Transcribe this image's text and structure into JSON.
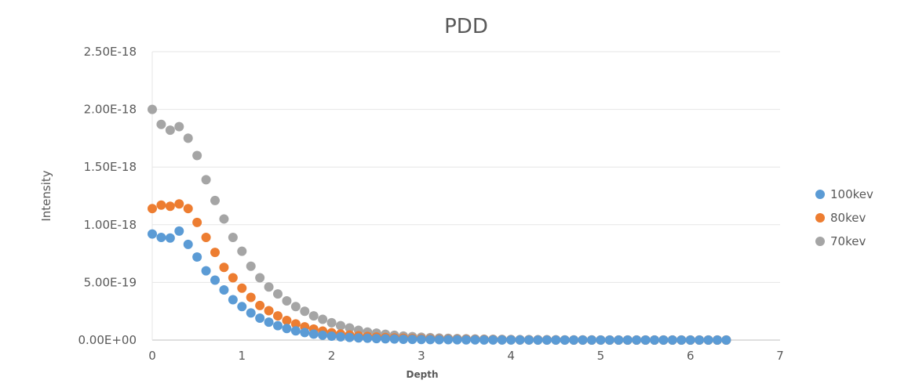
{
  "chart_data": {
    "type": "scatter",
    "title": "PDD",
    "xlabel": "Depth",
    "ylabel": "Intensity",
    "xlim": [
      0,
      7
    ],
    "ylim": [
      0,
      2.5e-18
    ],
    "x_ticks": [
      "0",
      "1",
      "2",
      "3",
      "4",
      "5",
      "6",
      "7"
    ],
    "y_ticks": [
      "0.00E+00",
      "5.00E-19",
      "1.00E-18",
      "1.50E-18",
      "2.00E-18",
      "2.50E-18"
    ],
    "grid": true,
    "legend_position": "right",
    "x": [
      0,
      0.1,
      0.2,
      0.3,
      0.4,
      0.5,
      0.6,
      0.7,
      0.8,
      0.9,
      1.0,
      1.1,
      1.2,
      1.3,
      1.4,
      1.5,
      1.6,
      1.7,
      1.8,
      1.9,
      2.0,
      2.1,
      2.2,
      2.3,
      2.4,
      2.5,
      2.6,
      2.7,
      2.8,
      2.9,
      3.0,
      3.1,
      3.2,
      3.3,
      3.4,
      3.5,
      3.6,
      3.7,
      3.8,
      3.9,
      4.0,
      4.1,
      4.2,
      4.3,
      4.4,
      4.5,
      4.6,
      4.7,
      4.8,
      4.9,
      5.0,
      5.1,
      5.2,
      5.3,
      5.4,
      5.5,
      5.6,
      5.7,
      5.8,
      5.9,
      6.0,
      6.1,
      6.2,
      6.3,
      6.4
    ],
    "series": [
      {
        "name": "100kev",
        "color": "#5B9BD5",
        "values": [
          9.2e-19,
          8.9e-19,
          8.85e-19,
          9.45e-19,
          8.3e-19,
          7.2e-19,
          6e-19,
          5.2e-19,
          4.35e-19,
          3.5e-19,
          2.9e-19,
          2.35e-19,
          1.9e-19,
          1.55e-19,
          1.25e-19,
          1e-19,
          8e-20,
          6.5e-20,
          5.2e-20,
          4.2e-20,
          3.4e-20,
          2.8e-20,
          2.3e-20,
          1.9e-20,
          1.6e-20,
          1.3e-20,
          1.1e-20,
          9e-21,
          7e-21,
          6e-21,
          5e-21,
          4e-21,
          3.5e-21,
          3e-21,
          2.5e-21,
          2e-21,
          1.5e-21,
          1.2e-21,
          1e-21,
          8e-22,
          6e-22,
          5e-22,
          4e-22,
          3e-22,
          2e-22,
          2e-22,
          1e-22,
          1e-22,
          1e-22,
          1e-22,
          1e-22,
          1e-22,
          1e-22,
          1e-22,
          1e-22,
          1e-22,
          1e-22,
          1e-22,
          1e-22,
          1e-22,
          1e-22,
          1e-22,
          1e-22,
          1e-22,
          1e-22
        ]
      },
      {
        "name": "80kev",
        "color": "#ED7D31",
        "values": [
          1.14e-18,
          1.17e-18,
          1.16e-18,
          1.18e-18,
          1.14e-18,
          1.02e-18,
          8.9e-19,
          7.6e-19,
          6.3e-19,
          5.4e-19,
          4.5e-19,
          3.7e-19,
          3e-19,
          2.55e-19,
          2.1e-19,
          1.7e-19,
          1.4e-19,
          1.15e-19,
          9.5e-20,
          7.8e-20,
          6.4e-20,
          5.3e-20,
          4.4e-20,
          3.7e-20,
          3.1e-20,
          2.6e-20,
          2.2e-20,
          1.9e-20,
          1.6e-20,
          1.3e-20,
          1.1e-20,
          9e-21,
          8e-21,
          7e-21,
          6e-21,
          5e-21,
          4e-21,
          3e-21,
          2.5e-21,
          2e-21,
          1.5e-21,
          1.2e-21,
          1e-21,
          8e-22,
          6e-22,
          5e-22,
          4e-22,
          3e-22,
          2e-22,
          2e-22,
          2e-22,
          1e-22,
          1e-22,
          1e-22,
          1e-22,
          1e-22,
          1e-22,
          1e-22,
          1e-22,
          1e-22,
          1e-22,
          1e-22,
          1e-22,
          1e-22,
          1e-22
        ]
      },
      {
        "name": "70kev",
        "color": "#A5A5A5",
        "values": [
          2e-18,
          1.87e-18,
          1.82e-18,
          1.85e-18,
          1.75e-18,
          1.6e-18,
          1.39e-18,
          1.21e-18,
          1.05e-18,
          8.9e-19,
          7.7e-19,
          6.4e-19,
          5.4e-19,
          4.6e-19,
          4e-19,
          3.4e-19,
          2.9e-19,
          2.5e-19,
          2.1e-19,
          1.8e-19,
          1.5e-19,
          1.25e-19,
          1.05e-19,
          8.5e-20,
          7e-20,
          6e-20,
          5e-20,
          4.2e-20,
          3.5e-20,
          3e-20,
          2.5e-20,
          2.1e-20,
          1.8e-20,
          1.5e-20,
          1.3e-20,
          1.1e-20,
          9e-21,
          8e-21,
          7e-21,
          6e-21,
          5e-21,
          4.5e-21,
          4e-21,
          3.5e-21,
          3e-21,
          2.5e-21,
          2e-21,
          2e-21,
          1.5e-21,
          1.5e-21,
          1e-21,
          1e-21,
          1e-21,
          1e-21,
          5e-22,
          5e-22,
          5e-22,
          5e-22,
          5e-22,
          5e-22,
          5e-22,
          5e-22,
          5e-22,
          5e-22,
          5e-22
        ]
      }
    ]
  }
}
